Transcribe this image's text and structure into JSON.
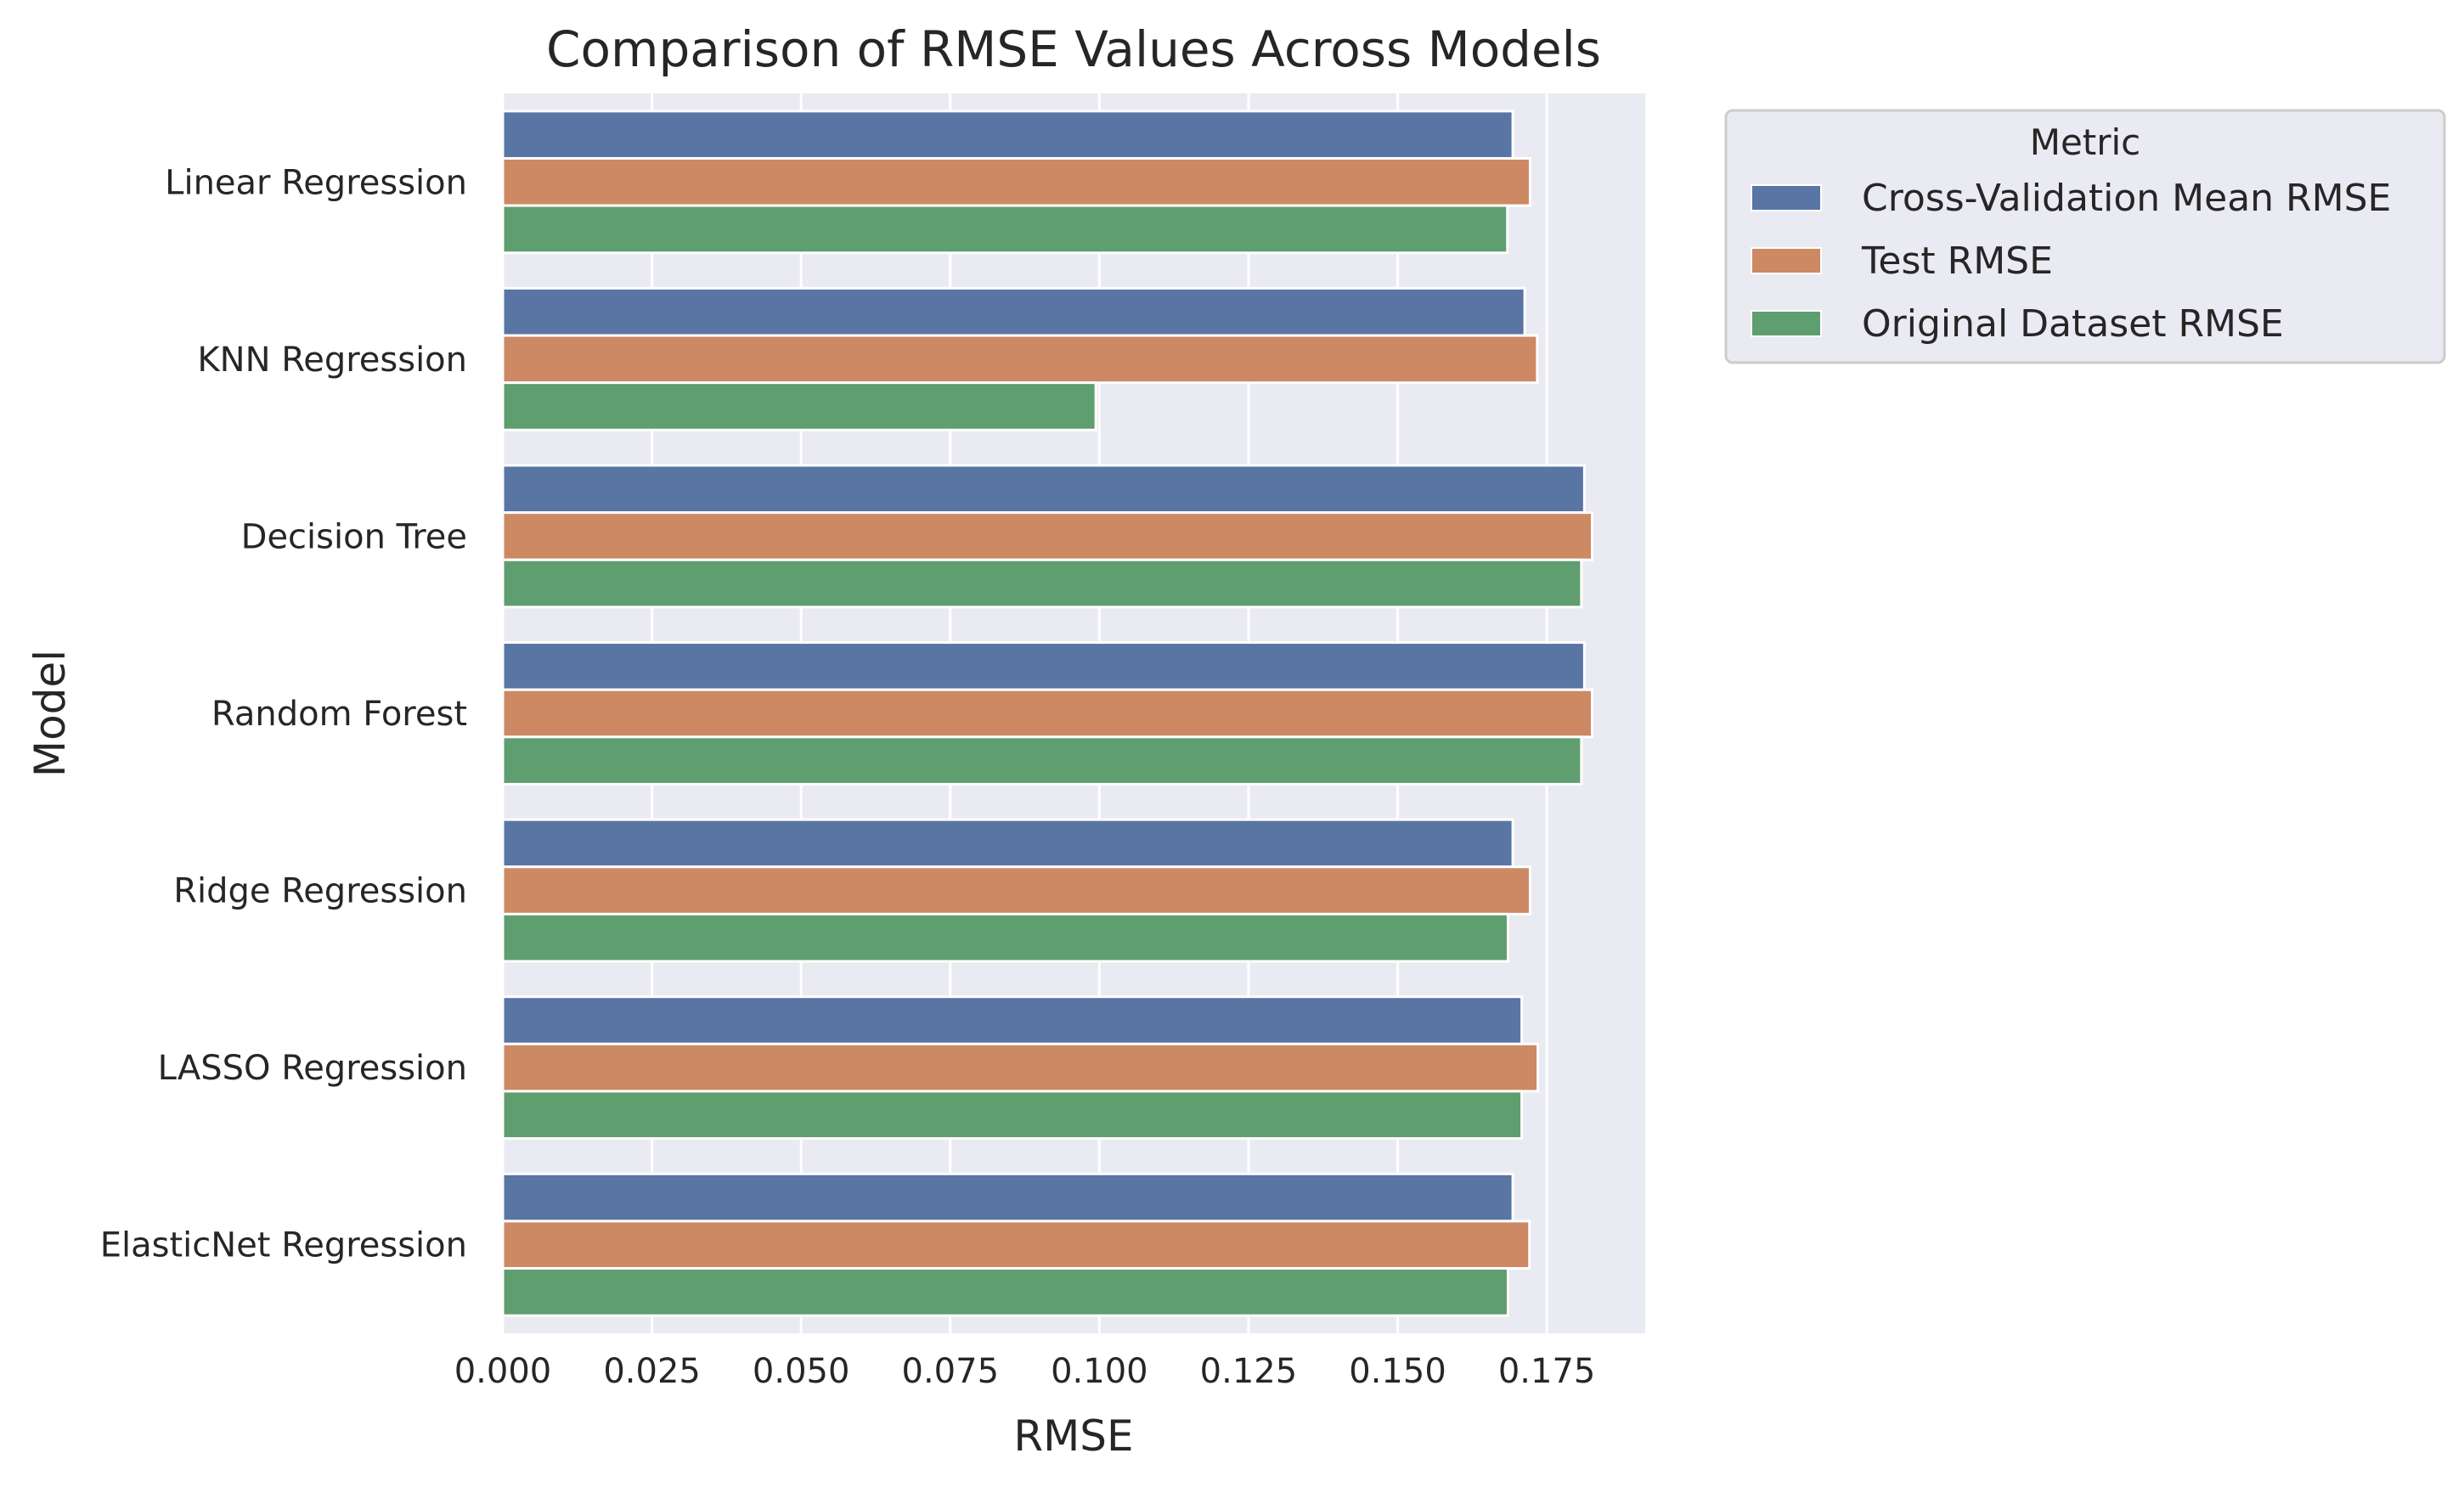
{
  "chart_data": {
    "type": "bar",
    "orientation": "horizontal",
    "title": "Comparison of RMSE Values Across Models",
    "xlabel": "RMSE",
    "ylabel": "Model",
    "xlim": [
      0,
      0.1915
    ],
    "xticks": [
      "0.000",
      "0.025",
      "0.050",
      "0.075",
      "0.100",
      "0.125",
      "0.150",
      "0.175"
    ],
    "grid": true,
    "legend_title": "Metric",
    "legend_placement": "outside-top-right",
    "categories": [
      "Linear Regression",
      "KNN Regression",
      "Decision Tree",
      "Random Forest",
      "Ridge Regression",
      "LASSO Regression",
      "ElasticNet Regression"
    ],
    "series": [
      {
        "name": "Cross-Validation Mean RMSE",
        "color": "#5875a4",
        "values": [
          0.1693,
          0.1713,
          0.1813,
          0.1813,
          0.1693,
          0.1708,
          0.1693
        ]
      },
      {
        "name": "Test RMSE",
        "color": "#cc8963",
        "values": [
          0.1722,
          0.1734,
          0.1826,
          0.1826,
          0.1722,
          0.1735,
          0.1721
        ]
      },
      {
        "name": "Original Dataset RMSE",
        "color": "#5f9e6e",
        "values": [
          0.1684,
          0.0994,
          0.1808,
          0.1808,
          0.1685,
          0.1708,
          0.1685
        ]
      }
    ]
  }
}
